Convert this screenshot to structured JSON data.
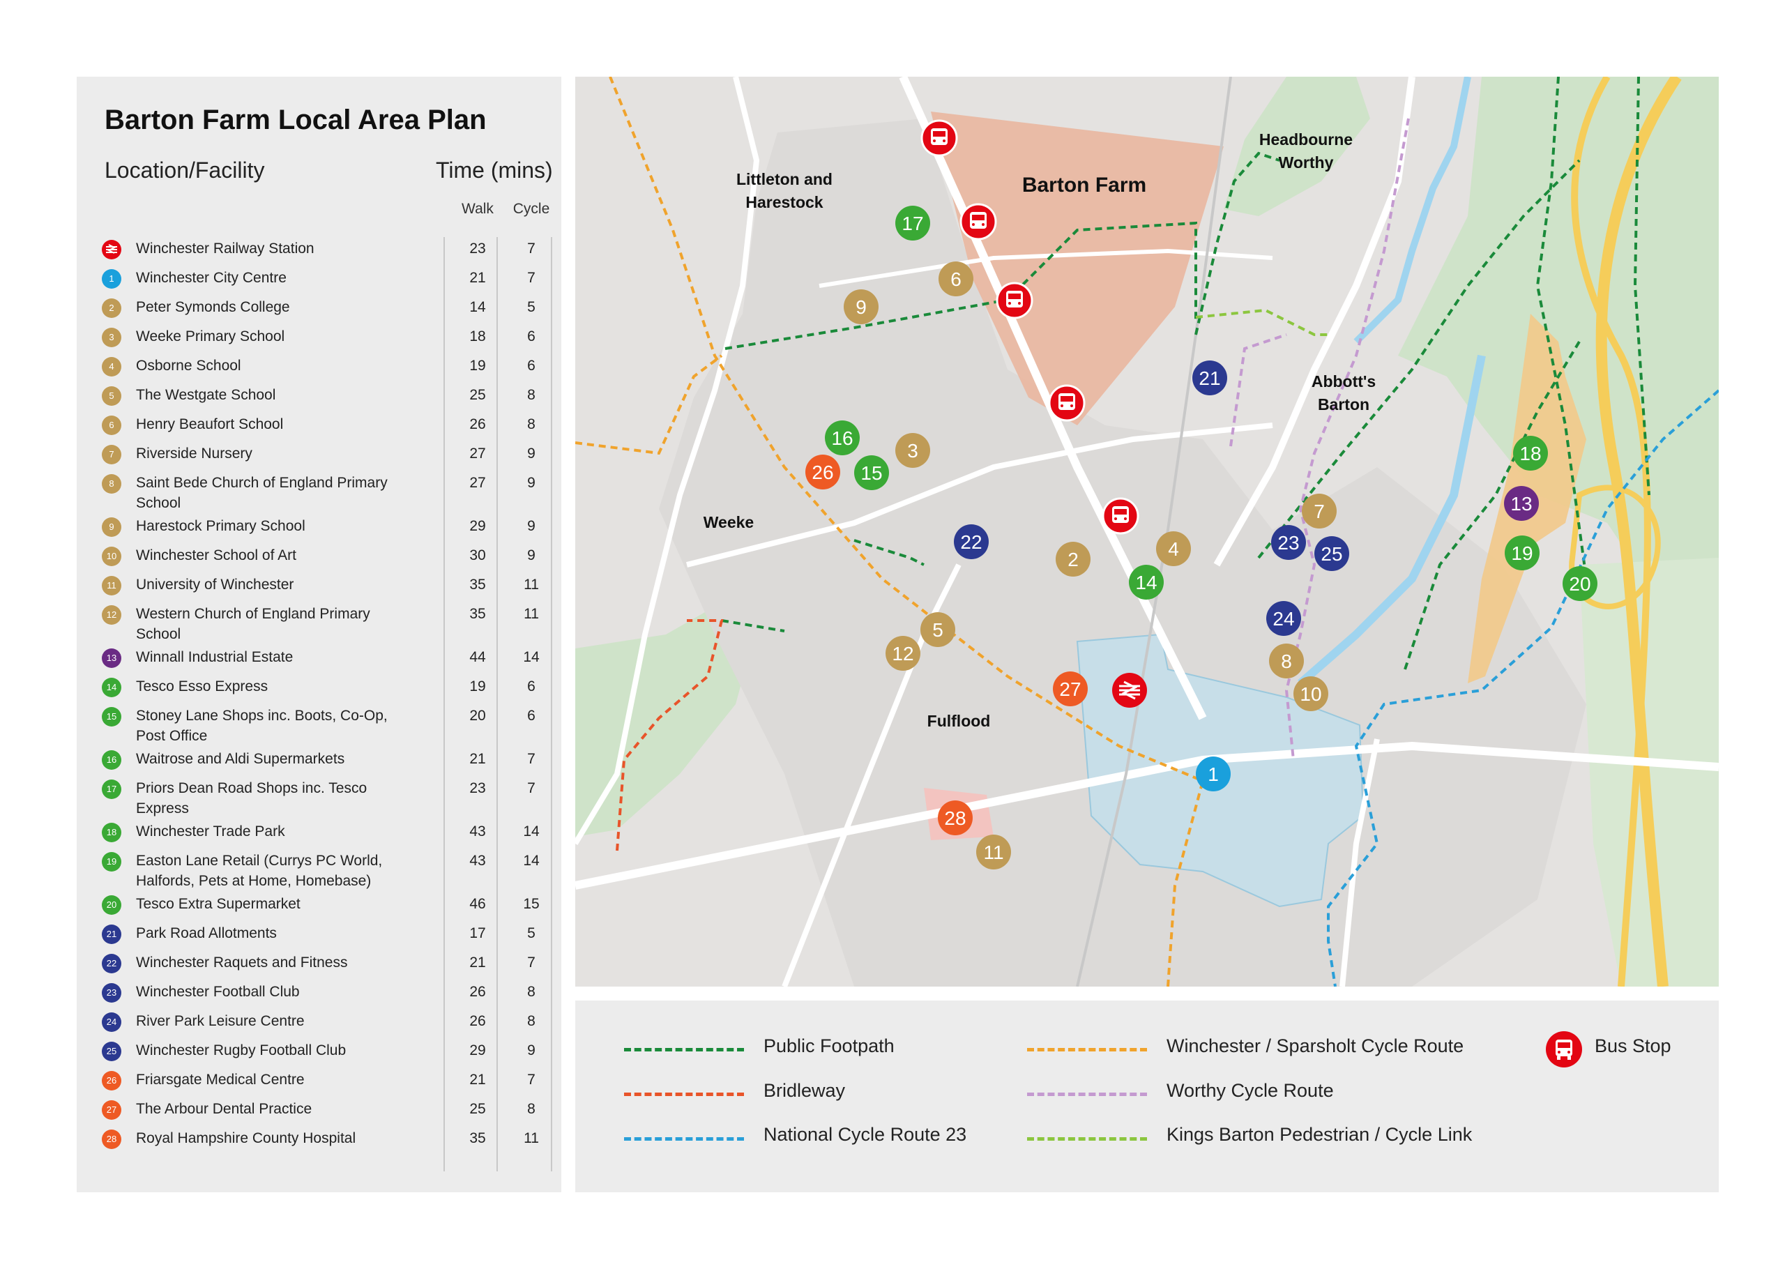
{
  "title": "Barton Farm Local Area Plan",
  "headers": {
    "location": "Location/Facility",
    "time": "Time (mins)",
    "walk": "Walk",
    "cycle": "Cycle"
  },
  "colors": {
    "rail": "#e30613",
    "city": "#1aa0dc",
    "education": "#bf9b56",
    "industrial": "#6a2b84",
    "shops": "#3aa935",
    "sport": "#2b3990",
    "medical": "#ee5a24"
  },
  "rows": [
    {
      "badge": "",
      "icon": "rail-icon",
      "category": "rail",
      "name": "Winchester Railway Station",
      "walk": "23",
      "cycle": "7"
    },
    {
      "badge": "1",
      "category": "city",
      "name": "Winchester City Centre",
      "walk": "21",
      "cycle": "7"
    },
    {
      "badge": "2",
      "category": "education",
      "name": "Peter Symonds College",
      "walk": "14",
      "cycle": "5"
    },
    {
      "badge": "3",
      "category": "education",
      "name": "Weeke Primary School",
      "walk": "18",
      "cycle": "6"
    },
    {
      "badge": "4",
      "category": "education",
      "name": "Osborne School",
      "walk": "19",
      "cycle": "6"
    },
    {
      "badge": "5",
      "category": "education",
      "name": "The Westgate School",
      "walk": "25",
      "cycle": "8"
    },
    {
      "badge": "6",
      "category": "education",
      "name": "Henry Beaufort School",
      "walk": "26",
      "cycle": "8"
    },
    {
      "badge": "7",
      "category": "education",
      "name": "Riverside Nursery",
      "walk": "27",
      "cycle": "9"
    },
    {
      "badge": "8",
      "category": "education",
      "name": "Saint Bede Church of England Primary School",
      "walk": "27",
      "cycle": "9"
    },
    {
      "badge": "9",
      "category": "education",
      "name": "Harestock Primary School",
      "walk": "29",
      "cycle": "9"
    },
    {
      "badge": "10",
      "category": "education",
      "name": "Winchester School of Art",
      "walk": "30",
      "cycle": "9"
    },
    {
      "badge": "11",
      "category": "education",
      "name": "University of Winchester",
      "walk": "35",
      "cycle": "11"
    },
    {
      "badge": "12",
      "category": "education",
      "name": "Western Church of England Primary School",
      "walk": "35",
      "cycle": "11"
    },
    {
      "badge": "13",
      "category": "industrial",
      "name": "Winnall Industrial Estate",
      "walk": "44",
      "cycle": "14"
    },
    {
      "badge": "14",
      "category": "shops",
      "name": "Tesco Esso Express",
      "walk": "19",
      "cycle": "6"
    },
    {
      "badge": "15",
      "category": "shops",
      "name": "Stoney Lane Shops inc. Boots, Co-Op, Post Office",
      "walk": "20",
      "cycle": "6"
    },
    {
      "badge": "16",
      "category": "shops",
      "name": "Waitrose and Aldi Supermarkets",
      "walk": "21",
      "cycle": "7"
    },
    {
      "badge": "17",
      "category": "shops",
      "name": "Priors Dean Road Shops inc. Tesco Express",
      "walk": "23",
      "cycle": "7"
    },
    {
      "badge": "18",
      "category": "shops",
      "name": "Winchester Trade Park",
      "walk": "43",
      "cycle": "14"
    },
    {
      "badge": "19",
      "category": "shops",
      "name": "Easton Lane Retail (Currys PC World, Halfords, Pets at Home, Homebase)",
      "walk": "43",
      "cycle": "14"
    },
    {
      "badge": "20",
      "category": "shops",
      "name": "Tesco Extra Supermarket",
      "walk": "46",
      "cycle": "15"
    },
    {
      "badge": "21",
      "category": "sport",
      "name": "Park Road Allotments",
      "walk": "17",
      "cycle": "5"
    },
    {
      "badge": "22",
      "category": "sport",
      "name": "Winchester Raquets and Fitness",
      "walk": "21",
      "cycle": "7"
    },
    {
      "badge": "23",
      "category": "sport",
      "name": "Winchester Football Club",
      "walk": "26",
      "cycle": "8"
    },
    {
      "badge": "24",
      "category": "sport",
      "name": "River Park Leisure Centre",
      "walk": "26",
      "cycle": "8"
    },
    {
      "badge": "25",
      "category": "sport",
      "name": "Winchester Rugby Football Club",
      "walk": "29",
      "cycle": "9"
    },
    {
      "badge": "26",
      "category": "medical",
      "name": "Friarsgate Medical Centre",
      "walk": "21",
      "cycle": "7"
    },
    {
      "badge": "27",
      "category": "medical",
      "name": "The Arbour Dental Practice",
      "walk": "25",
      "cycle": "8"
    },
    {
      "badge": "28",
      "category": "medical",
      "name": "Royal Hampshire County Hospital",
      "walk": "35",
      "cycle": "11"
    }
  ],
  "map": {
    "places": {
      "barton_farm": "Barton Farm",
      "littleton_1": "Littleton and",
      "littleton_2": "Harestock",
      "headbourne_1": "Headbourne",
      "headbourne_2": "Worthy",
      "abbotts_1": "Abbott's",
      "abbotts_2": "Barton",
      "weeke": "Weeke",
      "fulflood": "Fulflood"
    }
  },
  "legend": {
    "public_footpath": {
      "label": "Public Footpath",
      "color": "#1a8a3a"
    },
    "bridleway": {
      "label": "Bridleway",
      "color": "#e8542a"
    },
    "ncr23": {
      "label": "National Cycle Route 23",
      "color": "#2a9fd8"
    },
    "sparsholt": {
      "label": "Winchester / Sparsholt Cycle Route",
      "color": "#f0a32c"
    },
    "worthy": {
      "label": "Worthy Cycle Route",
      "color": "#c49ad0"
    },
    "kings_barton": {
      "label": "Kings Barton Pedestrian / Cycle Link",
      "color": "#8cc63f"
    },
    "bus_stop": {
      "label": "Bus Stop",
      "color": "#e30613"
    }
  }
}
